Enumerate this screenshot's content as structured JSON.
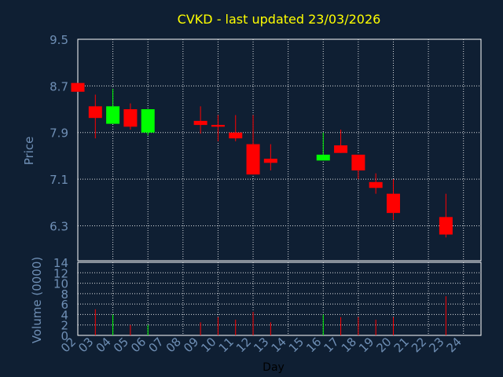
{
  "chart_data": {
    "type": "candlestick",
    "title": "CVKD - last updated 23/03/2026",
    "xlabel": "Day",
    "ylabel": "Price",
    "volume_label": "Volume (0000)",
    "price_ticks": [
      "9.5",
      "8.7",
      "7.9",
      "7.1",
      "6.3"
    ],
    "volume_ticks": [
      "14",
      "12",
      "10",
      "8",
      "6",
      "4",
      "2",
      "0"
    ],
    "day_labels": [
      "02",
      "03",
      "04",
      "05",
      "06",
      "07",
      "08",
      "09",
      "10",
      "11",
      "12",
      "13",
      "14",
      "15",
      "16",
      "17",
      "18",
      "19",
      "20",
      "21",
      "22",
      "23",
      "24"
    ],
    "price_range": [
      5.7,
      9.5
    ],
    "volume_range": [
      0,
      14
    ],
    "grid": true,
    "colors": {
      "background": "#0f1f33",
      "text": "#6f8fb5",
      "title": "#ffff00",
      "up": "#00ff00",
      "down": "#ff0000",
      "grid": "#ffffff"
    },
    "candles": [
      {
        "day": "02",
        "open": 8.75,
        "close": 8.6,
        "high": 8.75,
        "low": 8.6,
        "volume": 0
      },
      {
        "day": "03",
        "open": 8.35,
        "close": 8.15,
        "high": 8.55,
        "low": 7.8,
        "volume": 5
      },
      {
        "day": "04",
        "open": 8.05,
        "close": 8.35,
        "high": 8.65,
        "low": 8.05,
        "volume": 4
      },
      {
        "day": "05",
        "open": 8.3,
        "close": 8.0,
        "high": 8.4,
        "low": 7.95,
        "volume": 2
      },
      {
        "day": "06",
        "open": 7.9,
        "close": 8.3,
        "high": 8.3,
        "low": 7.85,
        "volume": 2
      },
      {
        "day": "09",
        "open": 8.1,
        "close": 8.03,
        "high": 8.35,
        "low": 7.88,
        "volume": 2.5
      },
      {
        "day": "10",
        "open": 8.03,
        "close": 8.0,
        "high": 8.2,
        "low": 7.75,
        "volume": 3.5
      },
      {
        "day": "11",
        "open": 7.9,
        "close": 7.8,
        "high": 8.2,
        "low": 7.75,
        "volume": 3
      },
      {
        "day": "12",
        "open": 7.7,
        "close": 7.18,
        "high": 8.2,
        "low": 7.18,
        "volume": 4.5
      },
      {
        "day": "13",
        "open": 7.45,
        "close": 7.38,
        "high": 7.7,
        "low": 7.25,
        "volume": 2.5
      },
      {
        "day": "16",
        "open": 7.42,
        "close": 7.52,
        "high": 7.9,
        "low": 7.42,
        "volume": 4
      },
      {
        "day": "17",
        "open": 7.68,
        "close": 7.55,
        "high": 7.95,
        "low": 7.55,
        "volume": 3.5
      },
      {
        "day": "18",
        "open": 7.52,
        "close": 7.25,
        "high": 7.52,
        "low": 7.1,
        "volume": 3.5
      },
      {
        "day": "19",
        "open": 7.05,
        "close": 6.95,
        "high": 7.2,
        "low": 6.85,
        "volume": 3
      },
      {
        "day": "20",
        "open": 6.85,
        "close": 6.52,
        "high": 7.1,
        "low": 6.4,
        "volume": 3.5
      },
      {
        "day": "23",
        "open": 6.45,
        "close": 6.15,
        "high": 6.85,
        "low": 6.1,
        "volume": 7.5
      }
    ]
  }
}
